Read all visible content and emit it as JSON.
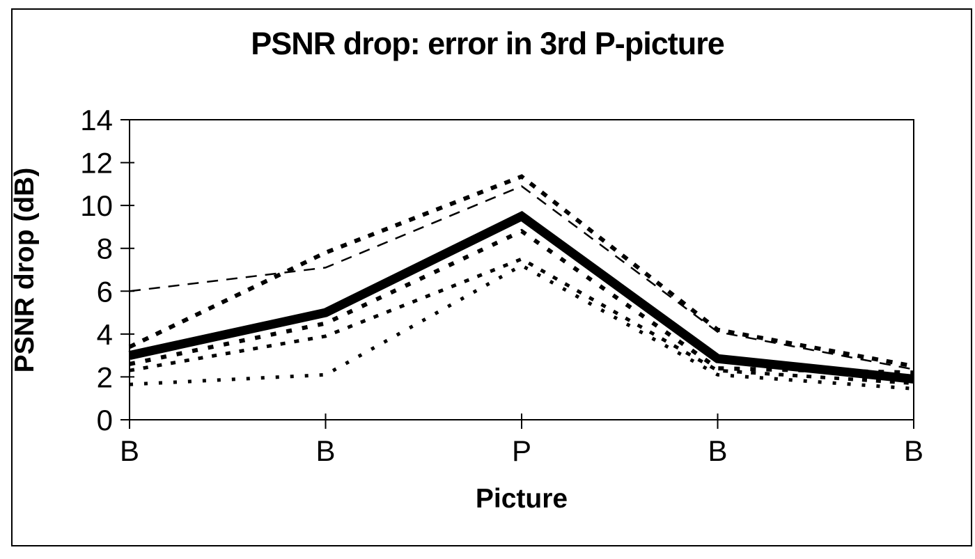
{
  "figure": {
    "background_color": "#ffffff",
    "border_color": "#000000",
    "line_color": "#000000"
  },
  "chart_data": {
    "type": "line",
    "title": "PSNR drop: error in 3rd P-picture",
    "xlabel": "Picture",
    "ylabel": "PSNR drop (dB)",
    "categories": [
      "B",
      "B",
      "P",
      "B",
      "B"
    ],
    "ylim": [
      0,
      14
    ],
    "y_ticks": [
      0,
      2,
      4,
      6,
      8,
      10,
      12,
      14
    ],
    "grid": false,
    "legend": false,
    "plot_frame": true,
    "series": [
      {
        "name": "dashed-line-1",
        "style": "thin-long-dash",
        "stroke_width": 2.5,
        "dash": "16 12",
        "values": [
          6.0,
          7.1,
          10.9,
          4.1,
          2.35
        ]
      },
      {
        "name": "dashed-line-2",
        "style": "thick-square-dash",
        "stroke_width": 6,
        "dash": "9 12",
        "values": [
          3.4,
          7.8,
          11.35,
          4.2,
          2.5
        ]
      },
      {
        "name": "dashed-line-3",
        "style": "thick-square-dash",
        "stroke_width": 6,
        "dash": "8 15",
        "values": [
          2.6,
          4.5,
          8.8,
          2.4,
          2.2
        ]
      },
      {
        "name": "dashed-line-4",
        "style": "medium-dash",
        "stroke_width": 5,
        "dash": "7 13",
        "values": [
          2.3,
          3.9,
          7.5,
          2.3,
          1.7
        ]
      },
      {
        "name": "dashed-line-5",
        "style": "sparse-dot-dash",
        "stroke_width": 5,
        "dash": "5 16",
        "values": [
          1.65,
          2.1,
          7.2,
          2.1,
          1.45
        ]
      },
      {
        "name": "bold-solid-line",
        "style": "solid-thick",
        "stroke_width": 13,
        "dash": null,
        "values": [
          3.0,
          5.0,
          9.5,
          2.85,
          1.9
        ]
      }
    ]
  }
}
